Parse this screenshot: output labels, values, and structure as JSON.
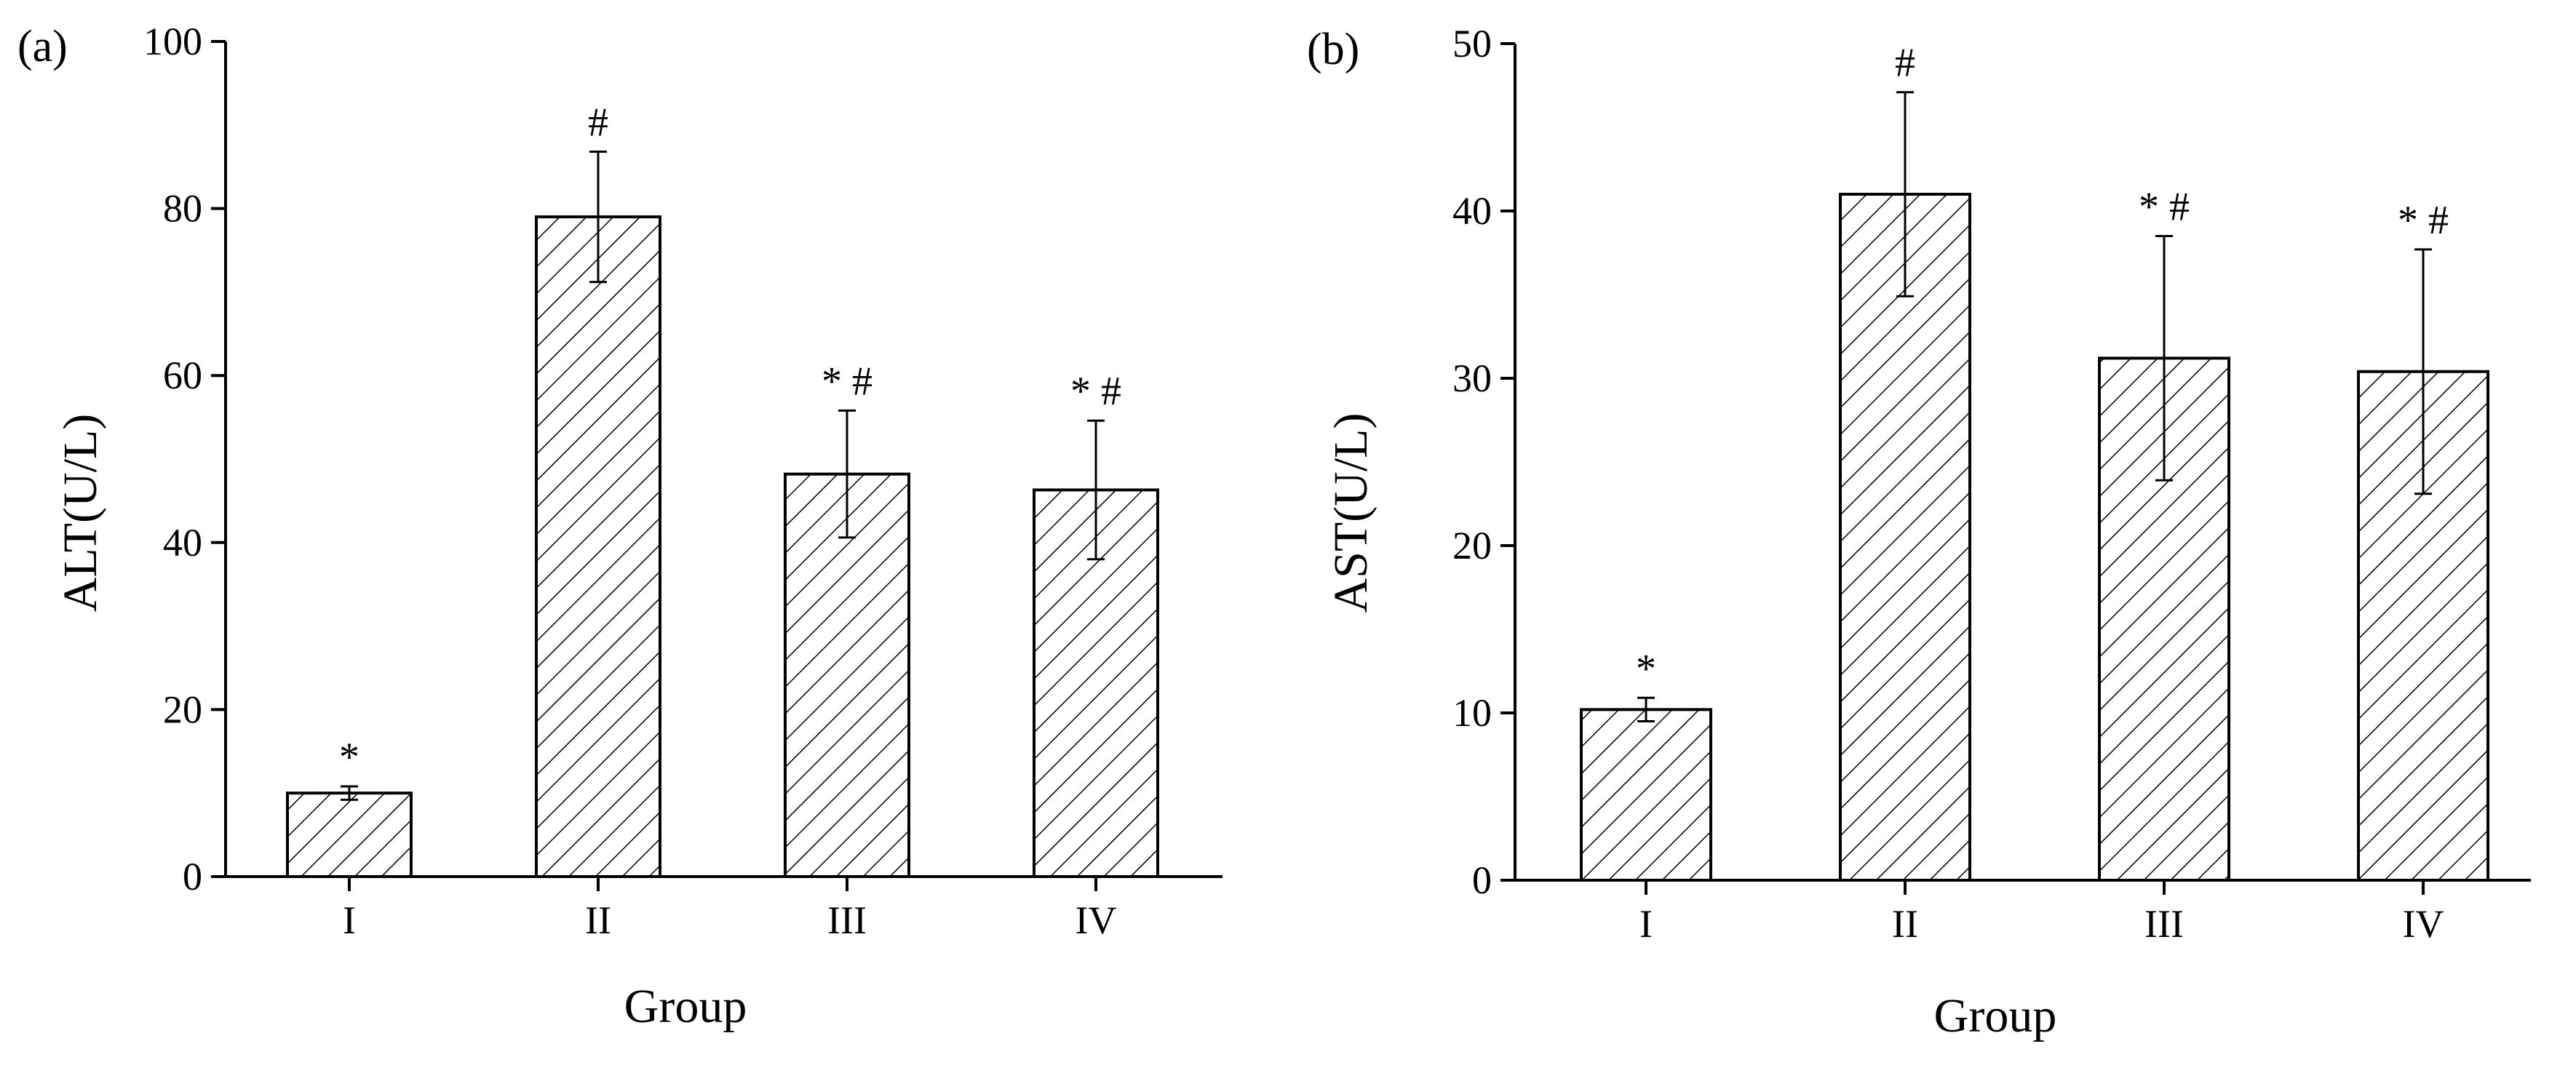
{
  "chart_data": [
    {
      "type": "bar",
      "panel_label": "(a)",
      "xlabel": "Group",
      "ylabel": "ALT(U/L)",
      "categories": [
        "I",
        "II",
        "III",
        "IV"
      ],
      "values": [
        10.0,
        79.0,
        48.2,
        46.3
      ],
      "errors": [
        0.8,
        7.8,
        7.6,
        8.3
      ],
      "annotations": [
        "*",
        "#",
        "* #",
        "* #"
      ],
      "ylim": [
        0,
        100
      ],
      "yticks": [
        "0",
        "20",
        "40",
        "60",
        "80",
        "100"
      ],
      "grid": false,
      "pattern": "diagonal-hatch"
    },
    {
      "type": "bar",
      "panel_label": "(b)",
      "xlabel": "Group",
      "ylabel": "AST(U/L)",
      "categories": [
        "I",
        "II",
        "III",
        "IV"
      ],
      "values": [
        10.2,
        41.0,
        31.2,
        30.4
      ],
      "errors": [
        0.7,
        6.1,
        7.3,
        7.3
      ],
      "annotations": [
        "*",
        "#",
        "* #",
        "* #"
      ],
      "ylim": [
        0,
        50
      ],
      "yticks": [
        "0",
        "10",
        "20",
        "30",
        "40",
        "50"
      ],
      "grid": false,
      "pattern": "diagonal-hatch"
    }
  ]
}
